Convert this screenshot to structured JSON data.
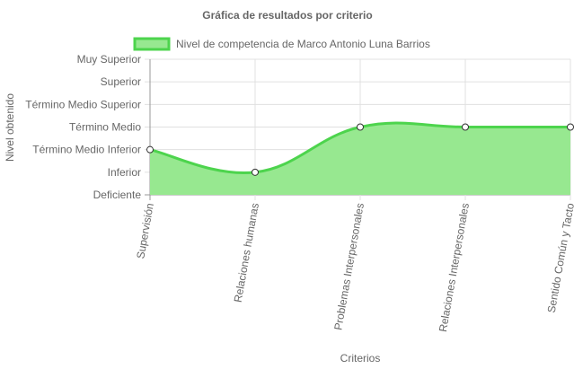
{
  "chart_data": {
    "type": "area",
    "title": "Gráfica de resultados por criterio",
    "xlabel": "Criterios",
    "ylabel": "Nivel obtenido",
    "y_levels": [
      "Deficiente",
      "Inferior",
      "Término Medio Inferior",
      "Término Medio",
      "Término Medio Superior",
      "Superior",
      "Muy Superior"
    ],
    "ylim": [
      0,
      6
    ],
    "categories": [
      "Supervisión",
      "Relaciones humanas",
      "Problemas Interpersonales",
      "Relaciones Interpersonales",
      "Sentido Común y Tacto"
    ],
    "series": [
      {
        "name": "Nivel de competencia de Marco Antonio Luna Barrios",
        "values": [
          2,
          1,
          3,
          3,
          3
        ],
        "color": "#4dd44d",
        "fill": "#97e890"
      }
    ],
    "legend": "top",
    "grid": true
  }
}
